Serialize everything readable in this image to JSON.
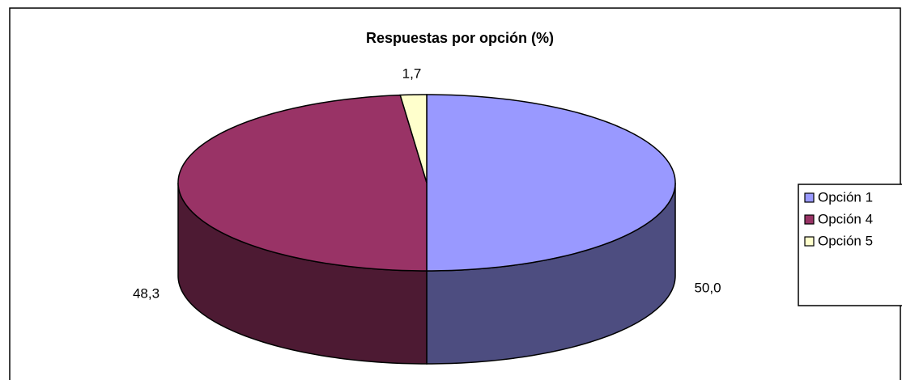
{
  "chart_data": {
    "type": "pie",
    "title": "Respuestas por opción (%)",
    "categories": [
      "Opción 1",
      "Opción 4",
      "Opción 5"
    ],
    "values": [
      50,
      48.3,
      1.7
    ],
    "value_labels": [
      "50,0",
      "48,3",
      "1,7"
    ],
    "colors": [
      "#9999ff",
      "#993366",
      "#ffffcc"
    ],
    "legend": "right"
  }
}
